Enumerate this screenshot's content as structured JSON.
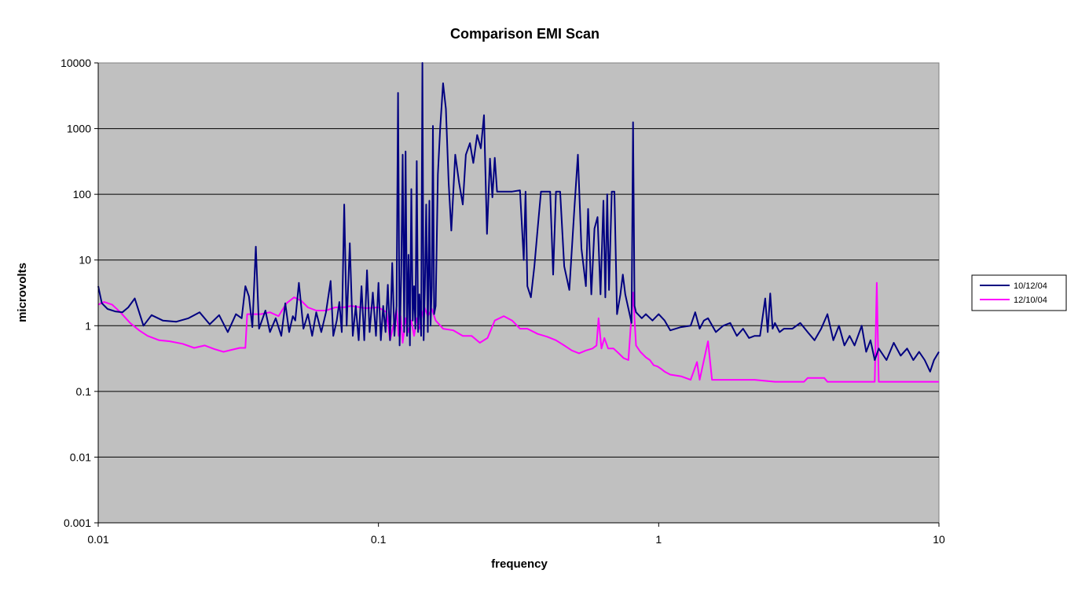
{
  "chart_data": {
    "type": "line",
    "title": "Comparison EMI Scan",
    "xlabel": "frequency",
    "ylabel": "microvolts",
    "x_scale": "log",
    "y_scale": "log",
    "xlim": [
      0.01,
      10
    ],
    "ylim": [
      0.001,
      10000
    ],
    "x_ticks": [
      0.01,
      0.1,
      1,
      10
    ],
    "x_tick_labels": [
      "0.01",
      "0.1",
      "1",
      "10"
    ],
    "y_ticks": [
      10000,
      1000,
      100,
      10,
      1,
      0.1,
      0.01,
      0.001
    ],
    "y_tick_labels": [
      "10000",
      "1000",
      "100",
      "10",
      "1",
      "0.1",
      "0.01",
      "0.001"
    ],
    "grid": "horizontal",
    "legend_position": "right",
    "plot_background": "#c0c0c0",
    "series": [
      {
        "name": "10/12/04",
        "color": "#000080",
        "points": [
          [
            0.01,
            4.0
          ],
          [
            0.0103,
            2.2
          ],
          [
            0.0108,
            1.8
          ],
          [
            0.0115,
            1.65
          ],
          [
            0.0122,
            1.6
          ],
          [
            0.0128,
            1.9
          ],
          [
            0.0135,
            2.6
          ],
          [
            0.0145,
            1.0
          ],
          [
            0.0155,
            1.45
          ],
          [
            0.017,
            1.2
          ],
          [
            0.019,
            1.15
          ],
          [
            0.021,
            1.3
          ],
          [
            0.023,
            1.6
          ],
          [
            0.025,
            1.05
          ],
          [
            0.027,
            1.45
          ],
          [
            0.029,
            0.8
          ],
          [
            0.031,
            1.5
          ],
          [
            0.0325,
            1.3
          ],
          [
            0.0335,
            4.0
          ],
          [
            0.0345,
            2.8
          ],
          [
            0.0355,
            0.95
          ],
          [
            0.0365,
            16.0
          ],
          [
            0.0375,
            0.9
          ],
          [
            0.0395,
            1.7
          ],
          [
            0.041,
            0.8
          ],
          [
            0.043,
            1.3
          ],
          [
            0.045,
            0.7
          ],
          [
            0.0465,
            2.2
          ],
          [
            0.048,
            0.8
          ],
          [
            0.0495,
            1.4
          ],
          [
            0.0505,
            1.2
          ],
          [
            0.052,
            4.5
          ],
          [
            0.054,
            0.9
          ],
          [
            0.056,
            1.5
          ],
          [
            0.058,
            0.7
          ],
          [
            0.06,
            1.6
          ],
          [
            0.0625,
            0.8
          ],
          [
            0.065,
            1.6
          ],
          [
            0.0675,
            4.8
          ],
          [
            0.069,
            0.7
          ],
          [
            0.071,
            1.2
          ],
          [
            0.0725,
            2.3
          ],
          [
            0.074,
            0.8
          ],
          [
            0.0755,
            70.0
          ],
          [
            0.077,
            1.0
          ],
          [
            0.079,
            18.0
          ],
          [
            0.081,
            0.7
          ],
          [
            0.083,
            2.0
          ],
          [
            0.085,
            0.6
          ],
          [
            0.087,
            4.0
          ],
          [
            0.089,
            0.6
          ],
          [
            0.091,
            7.0
          ],
          [
            0.093,
            0.8
          ],
          [
            0.0955,
            3.2
          ],
          [
            0.098,
            0.7
          ],
          [
            0.1,
            4.5
          ],
          [
            0.102,
            0.6
          ],
          [
            0.104,
            2.0
          ],
          [
            0.106,
            0.8
          ],
          [
            0.108,
            4.2
          ],
          [
            0.11,
            0.6
          ],
          [
            0.112,
            9.0
          ],
          [
            0.114,
            0.7
          ],
          [
            0.116,
            2.0
          ],
          [
            0.1175,
            3500.0
          ],
          [
            0.119,
            0.5
          ],
          [
            0.1205,
            6.0
          ],
          [
            0.122,
            400.0
          ],
          [
            0.1235,
            0.8
          ],
          [
            0.125,
            450.0
          ],
          [
            0.1265,
            0.7
          ],
          [
            0.128,
            12.0
          ],
          [
            0.1295,
            0.5
          ],
          [
            0.131,
            120.0
          ],
          [
            0.1325,
            1.2
          ],
          [
            0.134,
            4.0
          ],
          [
            0.1355,
            0.9
          ],
          [
            0.137,
            320.0
          ],
          [
            0.1385,
            0.8
          ],
          [
            0.14,
            3.0
          ],
          [
            0.142,
            0.7
          ],
          [
            0.1435,
            10000.0
          ],
          [
            0.145,
            0.6
          ],
          [
            0.1465,
            4.0
          ],
          [
            0.148,
            70.0
          ],
          [
            0.15,
            0.8
          ],
          [
            0.152,
            80.0
          ],
          [
            0.1535,
            1.0
          ],
          [
            0.155,
            4.0
          ],
          [
            0.1565,
            1100.0
          ],
          [
            0.158,
            1.5
          ],
          [
            0.16,
            2.0
          ],
          [
            0.163,
            200.0
          ],
          [
            0.166,
            1000.0
          ],
          [
            0.17,
            4900.0
          ],
          [
            0.174,
            2000.0
          ],
          [
            0.178,
            150.0
          ],
          [
            0.182,
            28.0
          ],
          [
            0.188,
            400.0
          ],
          [
            0.194,
            150.0
          ],
          [
            0.2,
            70.0
          ],
          [
            0.205,
            400.0
          ],
          [
            0.212,
            600.0
          ],
          [
            0.218,
            300.0
          ],
          [
            0.225,
            800.0
          ],
          [
            0.232,
            500.0
          ],
          [
            0.238,
            1600.0
          ],
          [
            0.244,
            25.0
          ],
          [
            0.25,
            350.0
          ],
          [
            0.255,
            90.0
          ],
          [
            0.26,
            360.0
          ],
          [
            0.265,
            110.0
          ],
          [
            0.3,
            110.0
          ],
          [
            0.32,
            115.0
          ],
          [
            0.33,
            10.0
          ],
          [
            0.335,
            110.0
          ],
          [
            0.34,
            4.0
          ],
          [
            0.35,
            2.7
          ],
          [
            0.36,
            8.0
          ],
          [
            0.37,
            30.0
          ],
          [
            0.38,
            110.0
          ],
          [
            0.41,
            110.0
          ],
          [
            0.42,
            6.0
          ],
          [
            0.43,
            110.0
          ],
          [
            0.445,
            110.0
          ],
          [
            0.46,
            8.0
          ],
          [
            0.48,
            3.5
          ],
          [
            0.5,
            60.0
          ],
          [
            0.515,
            400.0
          ],
          [
            0.53,
            15.0
          ],
          [
            0.55,
            4.0
          ],
          [
            0.56,
            60.0
          ],
          [
            0.575,
            3.0
          ],
          [
            0.59,
            30.0
          ],
          [
            0.605,
            45.0
          ],
          [
            0.62,
            3.0
          ],
          [
            0.635,
            80.0
          ],
          [
            0.645,
            2.7
          ],
          [
            0.655,
            100.0
          ],
          [
            0.665,
            3.5
          ],
          [
            0.68,
            110.0
          ],
          [
            0.695,
            110.0
          ],
          [
            0.71,
            1.5
          ],
          [
            0.73,
            3.0
          ],
          [
            0.745,
            6.0
          ],
          [
            0.76,
            3.0
          ],
          [
            0.8,
            1.1
          ],
          [
            0.81,
            1250.0
          ],
          [
            0.82,
            2.0
          ],
          [
            0.83,
            1.6
          ],
          [
            0.87,
            1.3
          ],
          [
            0.9,
            1.5
          ],
          [
            0.95,
            1.2
          ],
          [
            1.0,
            1.5
          ],
          [
            1.05,
            1.2
          ],
          [
            1.1,
            0.85
          ],
          [
            1.2,
            0.95
          ],
          [
            1.3,
            1.0
          ],
          [
            1.35,
            1.6
          ],
          [
            1.4,
            0.9
          ],
          [
            1.45,
            1.2
          ],
          [
            1.5,
            1.3
          ],
          [
            1.6,
            0.8
          ],
          [
            1.7,
            1.0
          ],
          [
            1.8,
            1.1
          ],
          [
            1.9,
            0.7
          ],
          [
            2.0,
            0.9
          ],
          [
            2.1,
            0.65
          ],
          [
            2.2,
            0.7
          ],
          [
            2.3,
            0.7
          ],
          [
            2.4,
            2.6
          ],
          [
            2.45,
            0.8
          ],
          [
            2.5,
            3.1
          ],
          [
            2.55,
            0.9
          ],
          [
            2.6,
            1.1
          ],
          [
            2.7,
            0.8
          ],
          [
            2.8,
            0.9
          ],
          [
            3.0,
            0.9
          ],
          [
            3.2,
            1.1
          ],
          [
            3.4,
            0.8
          ],
          [
            3.6,
            0.6
          ],
          [
            3.8,
            0.9
          ],
          [
            4.0,
            1.5
          ],
          [
            4.2,
            0.6
          ],
          [
            4.4,
            1.0
          ],
          [
            4.6,
            0.5
          ],
          [
            4.8,
            0.7
          ],
          [
            5.0,
            0.5
          ],
          [
            5.3,
            1.0
          ],
          [
            5.5,
            0.4
          ],
          [
            5.7,
            0.6
          ],
          [
            5.9,
            0.3
          ],
          [
            6.1,
            0.45
          ],
          [
            6.5,
            0.3
          ],
          [
            6.9,
            0.55
          ],
          [
            7.3,
            0.35
          ],
          [
            7.7,
            0.45
          ],
          [
            8.1,
            0.3
          ],
          [
            8.5,
            0.4
          ],
          [
            8.9,
            0.3
          ],
          [
            9.3,
            0.2
          ],
          [
            9.6,
            0.3
          ],
          [
            10.0,
            0.4
          ]
        ]
      },
      {
        "name": "12/10/04",
        "color": "#ff00ff",
        "points": [
          [
            0.01,
            2.1
          ],
          [
            0.0105,
            2.3
          ],
          [
            0.0112,
            2.1
          ],
          [
            0.012,
            1.6
          ],
          [
            0.013,
            1.1
          ],
          [
            0.014,
            0.85
          ],
          [
            0.015,
            0.7
          ],
          [
            0.0165,
            0.6
          ],
          [
            0.018,
            0.58
          ],
          [
            0.02,
            0.53
          ],
          [
            0.022,
            0.46
          ],
          [
            0.024,
            0.5
          ],
          [
            0.026,
            0.44
          ],
          [
            0.028,
            0.4
          ],
          [
            0.03,
            0.43
          ],
          [
            0.032,
            0.46
          ],
          [
            0.0335,
            0.46
          ],
          [
            0.034,
            1.5
          ],
          [
            0.036,
            1.5
          ],
          [
            0.038,
            1.5
          ],
          [
            0.041,
            1.6
          ],
          [
            0.044,
            1.4
          ],
          [
            0.047,
            2.2
          ],
          [
            0.05,
            2.7
          ],
          [
            0.053,
            2.4
          ],
          [
            0.056,
            1.9
          ],
          [
            0.06,
            1.7
          ],
          [
            0.065,
            1.7
          ],
          [
            0.07,
            1.9
          ],
          [
            0.075,
            1.9
          ],
          [
            0.08,
            2.0
          ],
          [
            0.09,
            1.85
          ],
          [
            0.1,
            1.9
          ],
          [
            0.107,
            1.6
          ],
          [
            0.11,
            0.6
          ],
          [
            0.113,
            1.0
          ],
          [
            0.116,
            1.8
          ],
          [
            0.118,
            0.7
          ],
          [
            0.12,
            1.4
          ],
          [
            0.122,
            0.55
          ],
          [
            0.125,
            1.3
          ],
          [
            0.128,
            0.8
          ],
          [
            0.131,
            1.2
          ],
          [
            0.134,
            0.7
          ],
          [
            0.137,
            1.3
          ],
          [
            0.14,
            0.9
          ],
          [
            0.143,
            1.5
          ],
          [
            0.146,
            1.9
          ],
          [
            0.15,
            1.4
          ],
          [
            0.155,
            1.8
          ],
          [
            0.16,
            1.2
          ],
          [
            0.17,
            0.9
          ],
          [
            0.185,
            0.85
          ],
          [
            0.2,
            0.7
          ],
          [
            0.215,
            0.7
          ],
          [
            0.23,
            0.55
          ],
          [
            0.245,
            0.65
          ],
          [
            0.26,
            1.2
          ],
          [
            0.28,
            1.4
          ],
          [
            0.3,
            1.2
          ],
          [
            0.32,
            0.9
          ],
          [
            0.34,
            0.9
          ],
          [
            0.37,
            0.75
          ],
          [
            0.4,
            0.68
          ],
          [
            0.43,
            0.6
          ],
          [
            0.46,
            0.5
          ],
          [
            0.49,
            0.42
          ],
          [
            0.52,
            0.38
          ],
          [
            0.55,
            0.42
          ],
          [
            0.58,
            0.45
          ],
          [
            0.6,
            0.5
          ],
          [
            0.61,
            1.3
          ],
          [
            0.625,
            0.45
          ],
          [
            0.64,
            0.65
          ],
          [
            0.66,
            0.45
          ],
          [
            0.69,
            0.45
          ],
          [
            0.72,
            0.38
          ],
          [
            0.75,
            0.32
          ],
          [
            0.78,
            0.3
          ],
          [
            0.81,
            3.2
          ],
          [
            0.83,
            0.5
          ],
          [
            0.86,
            0.4
          ],
          [
            0.9,
            0.33
          ],
          [
            0.93,
            0.3
          ],
          [
            0.96,
            0.25
          ],
          [
            0.99,
            0.24
          ],
          [
            1.02,
            0.22
          ],
          [
            1.05,
            0.2
          ],
          [
            1.1,
            0.18
          ],
          [
            1.2,
            0.17
          ],
          [
            1.3,
            0.15
          ],
          [
            1.37,
            0.28
          ],
          [
            1.4,
            0.15
          ],
          [
            1.5,
            0.58
          ],
          [
            1.55,
            0.15
          ],
          [
            1.8,
            0.15
          ],
          [
            2.2,
            0.15
          ],
          [
            2.6,
            0.14
          ],
          [
            3.0,
            0.14
          ],
          [
            3.3,
            0.14
          ],
          [
            3.4,
            0.16
          ],
          [
            3.9,
            0.16
          ],
          [
            4.0,
            0.14
          ],
          [
            5.0,
            0.14
          ],
          [
            5.9,
            0.14
          ],
          [
            6.0,
            4.5
          ],
          [
            6.1,
            0.14
          ],
          [
            7.0,
            0.14
          ],
          [
            8.0,
            0.14
          ],
          [
            10.0,
            0.14
          ]
        ]
      }
    ]
  }
}
